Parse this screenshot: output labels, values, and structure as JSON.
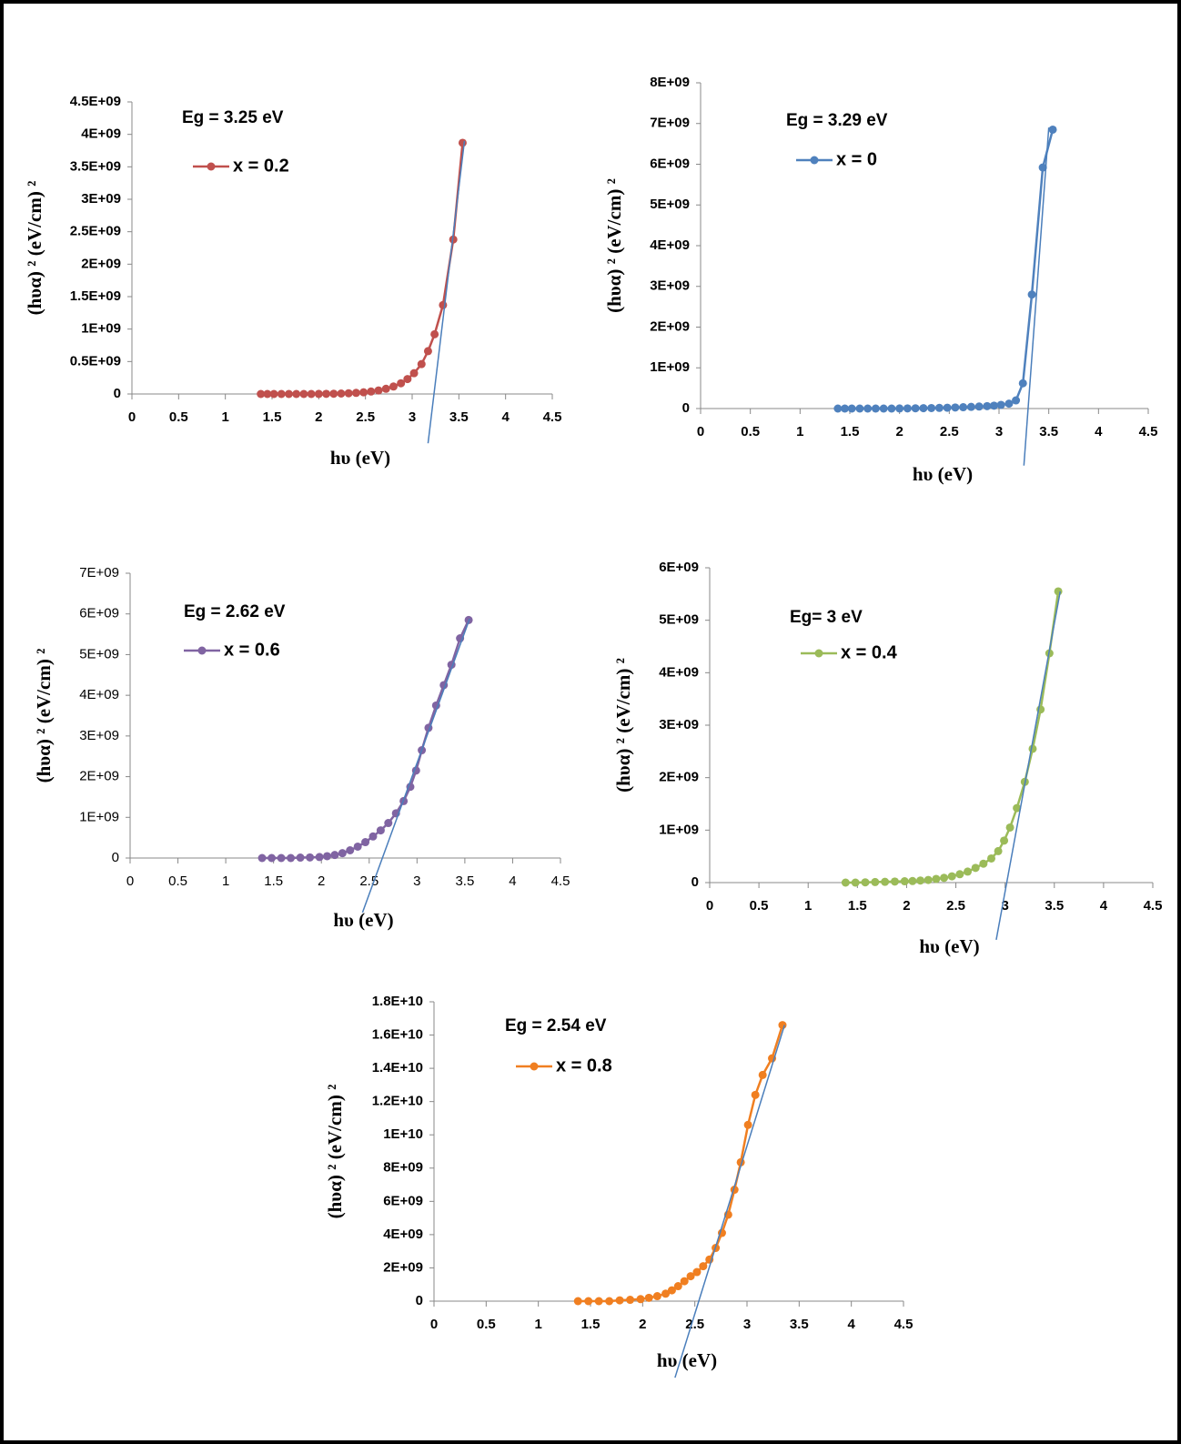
{
  "chart_data": [
    {
      "type": "line",
      "annotation": "Eg = 3.25 eV",
      "x_label": "hυ (eV)",
      "y_label": "(hυα) ² (eV/cm) ²",
      "x": [
        1.38,
        1.45,
        1.52,
        1.6,
        1.68,
        1.76,
        1.84,
        1.92,
        2.0,
        2.08,
        2.16,
        2.24,
        2.32,
        2.4,
        2.48,
        2.56,
        2.64,
        2.72,
        2.8,
        2.88,
        2.95,
        3.02,
        3.1,
        3.17,
        3.24,
        3.33,
        3.44,
        3.54
      ],
      "series": [
        {
          "name": "x = 0.2",
          "color": "#c0504d",
          "values": [
            0,
            0,
            0,
            0,
            0,
            0,
            0,
            0,
            1000000.0,
            2000000.0,
            4000000.0,
            7000000.0,
            11000000.0,
            17000000.0,
            26000000.0,
            38000000.0,
            55000000.0,
            80000000.0,
            115000000.0,
            165000000.0,
            230000000.0,
            320000000.0,
            460000000.0,
            660000000.0,
            920000000.0,
            1370000000.0,
            2380000000.0,
            3870000000.0
          ]
        }
      ],
      "tangent": {
        "x": [
          3.17,
          3.56
        ],
        "values": [
          -760000000.0,
          3900000000.0
        ],
        "color": "#4a7ebb"
      },
      "xlim": [
        0,
        4.5
      ],
      "xticks": [
        0,
        0.5,
        1,
        1.5,
        2,
        2.5,
        3,
        3.5,
        4,
        4.5
      ],
      "ylim": [
        0,
        4500000000.0
      ],
      "yticks": [
        0,
        {
          "value": 500000000.0,
          "label": "0.5E+09"
        },
        {
          "value": 1000000000.0,
          "label": "1E+09"
        },
        {
          "value": 1500000000.0,
          "label": "1.5E+09"
        },
        {
          "value": 2000000000.0,
          "label": "2E+09"
        },
        {
          "value": 2500000000.0,
          "label": "2.5E+09"
        },
        {
          "value": 3000000000.0,
          "label": "3E+09"
        },
        {
          "value": 3500000000.0,
          "label": "3.5E+09"
        },
        {
          "value": 4000000000.0,
          "label": "4E+09"
        },
        {
          "value": 4500000000.0,
          "label": "4.5E+09"
        }
      ]
    },
    {
      "type": "line",
      "annotation": "Eg = 3.29 eV",
      "x_label": "hυ (eV)",
      "y_label": "(hυα) ² (eV/cm) ²",
      "x": [
        1.38,
        1.45,
        1.52,
        1.6,
        1.68,
        1.76,
        1.84,
        1.92,
        2.0,
        2.08,
        2.16,
        2.24,
        2.32,
        2.4,
        2.48,
        2.56,
        2.64,
        2.72,
        2.8,
        2.88,
        2.95,
        3.02,
        3.1,
        3.17,
        3.24,
        3.33,
        3.44,
        3.54
      ],
      "series": [
        {
          "name": "x = 0",
          "color": "#4f81bd",
          "values": [
            0,
            0,
            0,
            0,
            0,
            0,
            0,
            0,
            2000000.0,
            4000000.0,
            6000000.0,
            9000000.0,
            12000000.0,
            16000000.0,
            20000000.0,
            26000000.0,
            33000000.0,
            41000000.0,
            50000000.0,
            60000000.0,
            70000000.0,
            90000000.0,
            120000000.0,
            200000000.0,
            620000000.0,
            2800000000.0,
            5920000000.0,
            6850000000.0
          ]
        }
      ],
      "tangent": {
        "x": [
          3.25,
          3.5
        ],
        "values": [
          -1400000000.0,
          6900000000.0
        ],
        "color": "#4a7ebb"
      },
      "xlim": [
        0,
        4.5
      ],
      "xticks": [
        0,
        0.5,
        1,
        1.5,
        2,
        2.5,
        3,
        3.5,
        4,
        4.5
      ],
      "ylim": [
        0,
        8000000000.0
      ],
      "yticks": [
        0,
        {
          "value": 1000000000.0,
          "label": "1E+09"
        },
        {
          "value": 2000000000.0,
          "label": "2E+09"
        },
        {
          "value": 3000000000.0,
          "label": "3E+09"
        },
        {
          "value": 4000000000.0,
          "label": "4E+09"
        },
        {
          "value": 5000000000.0,
          "label": "5E+09"
        },
        {
          "value": 6000000000.0,
          "label": "6E+09"
        },
        {
          "value": 7000000000.0,
          "label": "7E+09"
        },
        {
          "value": 8000000000.0,
          "label": "8E+09"
        }
      ]
    },
    {
      "type": "line",
      "annotation": "Eg = 2.62 eV",
      "x_label": "hυ (eV)",
      "y_label": "(hυα) ² (eV/cm) ²",
      "x": [
        1.38,
        1.48,
        1.58,
        1.68,
        1.78,
        1.88,
        1.98,
        2.06,
        2.14,
        2.22,
        2.3,
        2.38,
        2.46,
        2.54,
        2.62,
        2.7,
        2.78,
        2.86,
        2.93,
        2.99,
        3.05,
        3.12,
        3.2,
        3.28,
        3.36,
        3.45,
        3.54
      ],
      "series": [
        {
          "name": "x = 0.6",
          "color": "#8064a2",
          "values": [
            0,
            0,
            0,
            0,
            10000000.0,
            15000000.0,
            25000000.0,
            45000000.0,
            75000000.0,
            120000000.0,
            190000000.0,
            280000000.0,
            390000000.0,
            530000000.0,
            680000000.0,
            860000000.0,
            1100000000.0,
            1400000000.0,
            1750000000.0,
            2150000000.0,
            2650000000.0,
            3200000000.0,
            3750000000.0,
            4250000000.0,
            4750000000.0,
            5400000000.0,
            5850000000.0
          ]
        }
      ],
      "tangent": {
        "x": [
          2.43,
          3.55
        ],
        "values": [
          -1340000000.0,
          5880000000.0
        ],
        "color": "#4a7ebb"
      },
      "xlim": [
        0,
        4.5
      ],
      "xticks": [
        0,
        0.5,
        1,
        1.5,
        2,
        2.5,
        3,
        3.5,
        4,
        4.5
      ],
      "ylim": [
        0,
        7000000000.0
      ],
      "yticks": [
        0,
        {
          "value": 1000000000.0,
          "label": "1E+09"
        },
        {
          "value": 2000000000.0,
          "label": "2E+09"
        },
        {
          "value": 3000000000.0,
          "label": "3E+09"
        },
        {
          "value": 4000000000.0,
          "label": "4E+09"
        },
        {
          "value": 5000000000.0,
          "label": "5E+09"
        },
        {
          "value": 6000000000.0,
          "label": "6E+09"
        },
        {
          "value": 7000000000.0,
          "label": "7E+09"
        }
      ]
    },
    {
      "type": "line",
      "annotation": "Eg= 3  eV",
      "x_label": "hυ (eV)",
      "y_label": "(hυα) ² (eV/cm) ²",
      "x": [
        1.38,
        1.48,
        1.58,
        1.68,
        1.78,
        1.88,
        1.98,
        2.06,
        2.14,
        2.22,
        2.3,
        2.38,
        2.46,
        2.54,
        2.62,
        2.7,
        2.78,
        2.86,
        2.93,
        2.99,
        3.05,
        3.12,
        3.2,
        3.28,
        3.36,
        3.45,
        3.54
      ],
      "series": [
        {
          "name": "x = 0.4",
          "color": "#9bbb59",
          "values": [
            0,
            0,
            5000000.0,
            10000000.0,
            15000000.0,
            20000000.0,
            25000000.0,
            30000000.0,
            40000000.0,
            50000000.0,
            70000000.0,
            90000000.0,
            120000000.0,
            160000000.0,
            210000000.0,
            280000000.0,
            360000000.0,
            460000000.0,
            600000000.0,
            800000000.0,
            1050000000.0,
            1420000000.0,
            1920000000.0,
            2550000000.0,
            3300000000.0,
            4370000000.0,
            5550000000.0
          ]
        }
      ],
      "tangent": {
        "x": [
          2.91,
          3.56
        ],
        "values": [
          -1090000000.0,
          5550000000.0
        ],
        "color": "#4a7ebb"
      },
      "xlim": [
        0,
        4.5
      ],
      "xticks": [
        0,
        0.5,
        1,
        1.5,
        2,
        2.5,
        3,
        3.5,
        4,
        4.5
      ],
      "ylim": [
        0,
        6000000000.0
      ],
      "yticks": [
        0,
        {
          "value": 1000000000.0,
          "label": "1E+09"
        },
        {
          "value": 2000000000.0,
          "label": "2E+09"
        },
        {
          "value": 3000000000.0,
          "label": "3E+09"
        },
        {
          "value": 4000000000.0,
          "label": "4E+09"
        },
        {
          "value": 5000000000.0,
          "label": "5E+09"
        },
        {
          "value": 6000000000.0,
          "label": "6E+09"
        }
      ]
    },
    {
      "type": "line",
      "annotation": "Eg = 2.54 eV",
      "x_label": "hυ (eV)",
      "y_label": "(hυα) ² (eV/cm) ²",
      "x": [
        1.38,
        1.48,
        1.58,
        1.68,
        1.78,
        1.88,
        1.98,
        2.06,
        2.14,
        2.22,
        2.28,
        2.34,
        2.4,
        2.46,
        2.52,
        2.58,
        2.64,
        2.7,
        2.76,
        2.82,
        2.88,
        2.94,
        3.01,
        3.08,
        3.15,
        3.24,
        3.34
      ],
      "series": [
        {
          "name": "x = 0.8",
          "color": "#f07f21",
          "values": [
            0,
            0,
            0,
            0,
            50000000.0,
            80000000.0,
            120000000.0,
            200000000.0,
            300000000.0,
            450000000.0,
            650000000.0,
            900000000.0,
            1200000000.0,
            1500000000.0,
            1750000000.0,
            2100000000.0,
            2500000000.0,
            3200000000.0,
            4100000000.0,
            5200000000.0,
            6700000000.0,
            8350000000.0,
            10600000000.0,
            12400000000.0,
            13600000000.0,
            14600000000.0,
            16600000000.0
          ]
        }
      ],
      "tangent": {
        "x": [
          2.31,
          3.36
        ],
        "values": [
          -4600000000.0,
          16600000000.0
        ],
        "color": "#4a7ebb"
      },
      "xlim": [
        0,
        4.5
      ],
      "xticks": [
        0,
        0.5,
        1,
        1.5,
        2,
        2.5,
        3,
        3.5,
        4,
        4.5
      ],
      "ylim": [
        0,
        18000000000.0
      ],
      "yticks": [
        0,
        {
          "value": 2000000000.0,
          "label": "2E+09"
        },
        {
          "value": 4000000000.0,
          "label": "4E+09"
        },
        {
          "value": 6000000000.0,
          "label": "6E+09"
        },
        {
          "value": 8000000000.0,
          "label": "8E+09"
        },
        {
          "value": 10000000000.0,
          "label": "1E+10"
        },
        {
          "value": 12000000000.0,
          "label": "1.2E+10"
        },
        {
          "value": 14000000000.0,
          "label": "1.4E+10"
        },
        {
          "value": 16000000000.0,
          "label": "1.6E+10"
        },
        {
          "value": 18000000000.0,
          "label": "1.8E+10"
        }
      ]
    }
  ]
}
